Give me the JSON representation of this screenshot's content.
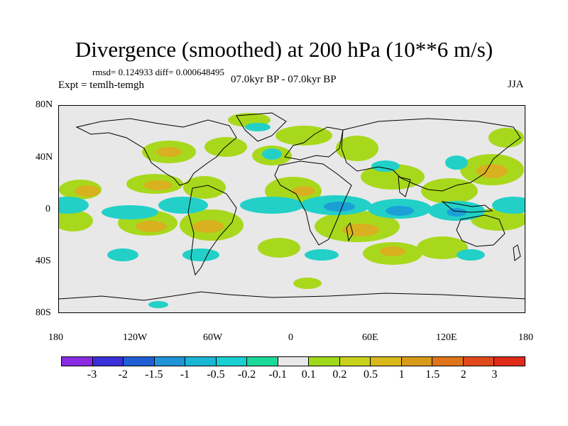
{
  "title": "Divergence (smoothed) at 200 hPa (10**6 m/s)",
  "stats": "rmsd= 0.124933 diff= 0.000648495",
  "expt": "Expt = temlh-temgh",
  "period": "07.0kyr BP - 07.0kyr BP",
  "season": "JJA",
  "map": {
    "y_ticks": [
      "80N",
      "40N",
      "0",
      "40S",
      "80S"
    ],
    "x_ticks": [
      "180",
      "120W",
      "60W",
      "0",
      "60E",
      "120E",
      "180"
    ]
  },
  "colorbar": {
    "colors": [
      "#8a2be2",
      "#3a2fd8",
      "#1f5fd6",
      "#1f94d8",
      "#1ab6d6",
      "#19cfd2",
      "#1ad99a",
      "#e8e8e8",
      "#a0d81a",
      "#c8d21a",
      "#d8b81a",
      "#d89a1a",
      "#e0741a",
      "#e04a1a",
      "#e02a1a"
    ],
    "labels": [
      "-3",
      "-2",
      "-1.5",
      "-1",
      "-0.5",
      "-0.2",
      "-0.1",
      "0.1",
      "0.2",
      "0.5",
      "1",
      "1.5",
      "2",
      "3"
    ]
  }
}
